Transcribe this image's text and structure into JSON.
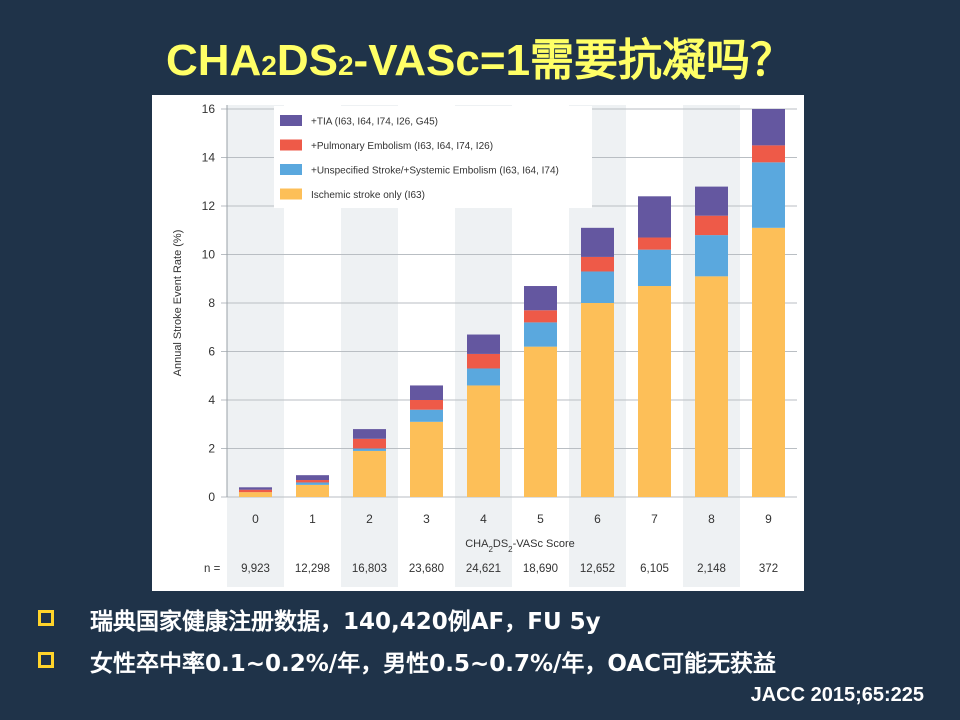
{
  "slide": {
    "title_part1": "CHA",
    "title_sub1": "2",
    "title_part2": "DS",
    "title_sub2": "2",
    "title_part3": "-VASc=1需要抗凝吗？",
    "citation": "JACC 2015;65:225"
  },
  "bullets": [
    {
      "text": "瑞典国家健康注册数据，140,420例AF，FU 5y"
    },
    {
      "text": "女性卒中率0.1~0.2%/年，男性0.5~0.7%/年，OAC可能无获益"
    }
  ],
  "chart_data": {
    "type": "bar",
    "stacked": true,
    "ylabel": "Annual Stroke Event Rate (%)",
    "xlabel_main": "CHA",
    "xlabel_sub1": "2",
    "xlabel_mid": "DS",
    "xlabel_sub2": "2",
    "xlabel_end": "-VASc Score",
    "ylim": [
      0,
      16
    ],
    "yticks": [
      "0",
      "2",
      "4",
      "6",
      "8",
      "10",
      "12",
      "14",
      "16"
    ],
    "categories": [
      "0",
      "1",
      "2",
      "3",
      "4",
      "5",
      "6",
      "7",
      "8",
      "9"
    ],
    "n_label": "n =",
    "n_values": [
      "9,923",
      "12,298",
      "16,803",
      "23,680",
      "24,621",
      "18,690",
      "12,652",
      "6,105",
      "2,148",
      "372"
    ],
    "legend_position": "top-left",
    "series": [
      {
        "name": "Ischemic stroke only (I63)",
        "color": "#fdbf58",
        "values": [
          0.2,
          0.5,
          1.9,
          3.1,
          4.6,
          6.2,
          8.0,
          8.7,
          9.1,
          11.1
        ]
      },
      {
        "name": "+Unspecified Stroke/+Systemic Embolism (I63, I64, I74)",
        "color": "#5aa8de",
        "values": [
          0.0,
          0.1,
          0.1,
          0.5,
          0.7,
          1.0,
          1.3,
          1.5,
          1.7,
          2.7
        ]
      },
      {
        "name": "+Pulmonary Embolism (I63, I64, I74, I26)",
        "color": "#ee5a48",
        "values": [
          0.1,
          0.1,
          0.4,
          0.4,
          0.6,
          0.5,
          0.6,
          0.5,
          0.8,
          0.7
        ]
      },
      {
        "name": "+TIA (I63, I64, I74, I26, G45)",
        "color": "#6457a0",
        "values": [
          0.1,
          0.2,
          0.4,
          0.6,
          0.8,
          1.0,
          1.2,
          1.7,
          1.2,
          1.5
        ]
      }
    ]
  }
}
